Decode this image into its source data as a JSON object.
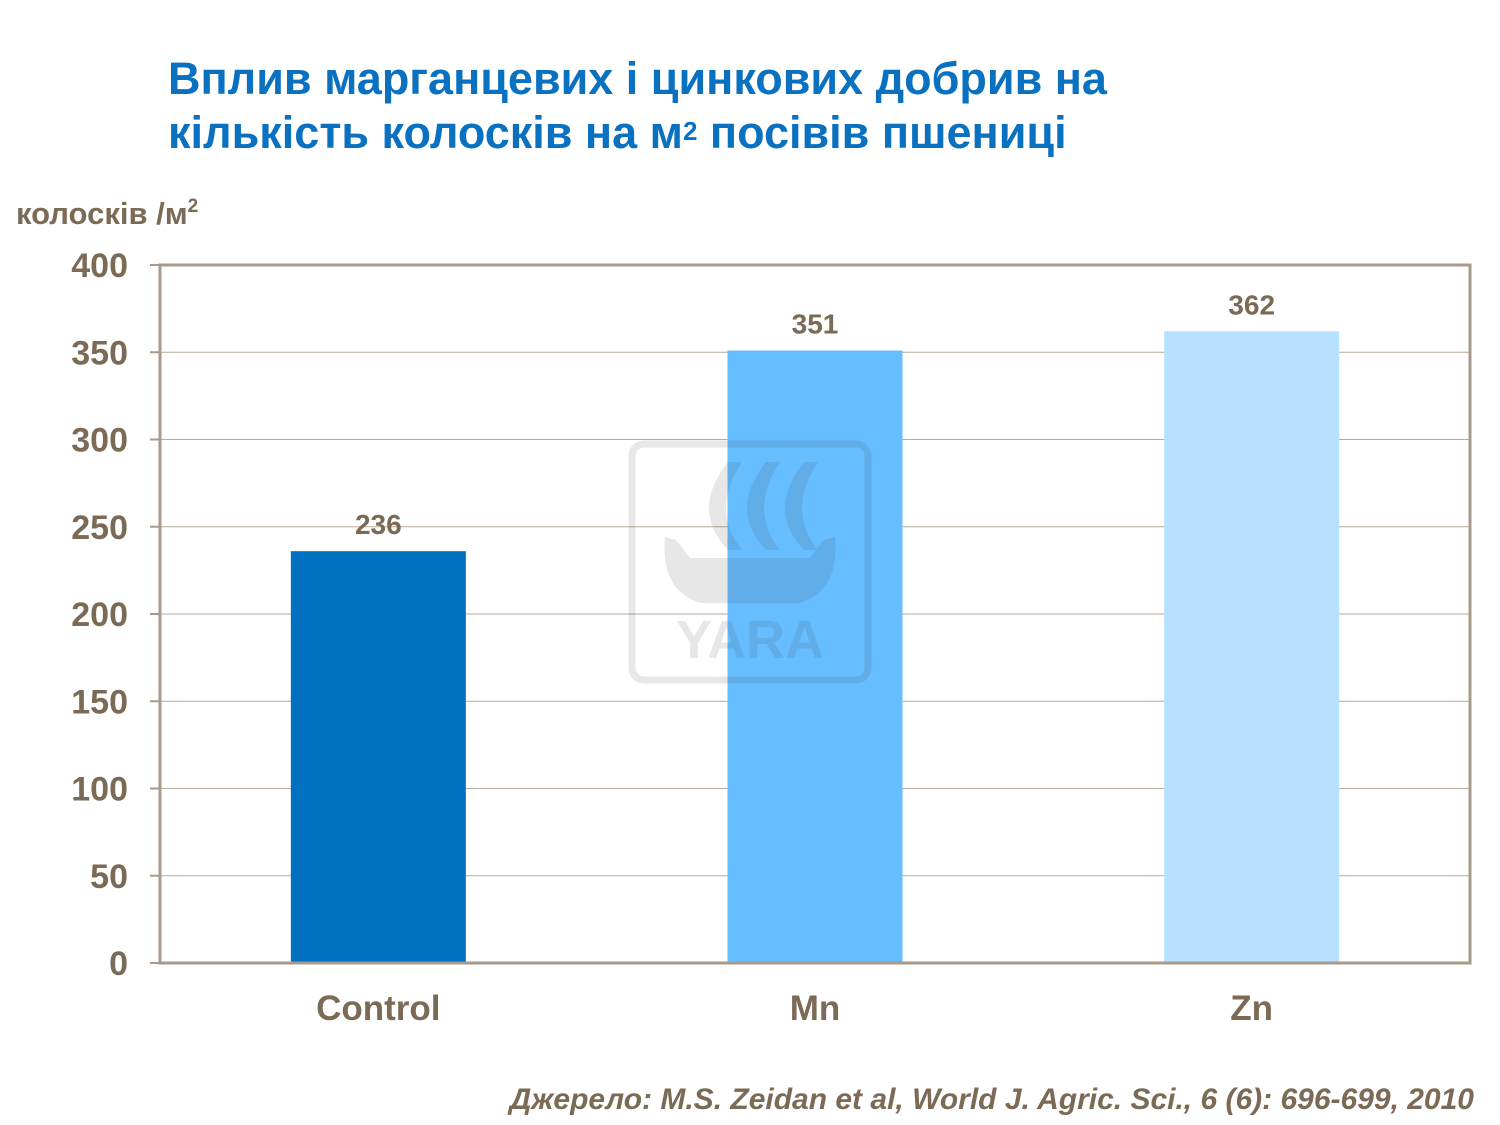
{
  "chart_data": {
    "type": "bar",
    "title_line1": "Вплив марганцевих і цинкових добрив на",
    "title_line2_pre": "кількість колосків на м",
    "title_line2_sup": "2",
    "title_line2_post": " посівів пшениці",
    "ylabel": "колосків /м",
    "ylabel_sup": "2",
    "xlabel": "",
    "categories": [
      "Control",
      "Mn",
      "Zn"
    ],
    "values": [
      236,
      351,
      362
    ],
    "data_labels": [
      "236",
      "351",
      "362"
    ],
    "bar_colors": [
      "#0070c0",
      "#66bdff",
      "#b8e0ff"
    ],
    "ylim": [
      0,
      400
    ],
    "yticks": [
      0,
      50,
      100,
      150,
      200,
      250,
      300,
      350,
      400
    ],
    "grid": true,
    "legend": "none"
  },
  "watermark": {
    "text": "YARA",
    "icon": "yara-viking-ship-logo"
  },
  "source": "Джерело: M.S. Zeidan et al, World J. Agric. Sci., 6 (6): 696-699, 2010",
  "colors": {
    "title": "#0a71c1",
    "text": "#7b6a55",
    "axis": "#a89a8a",
    "grid": "#b8aa9a"
  }
}
